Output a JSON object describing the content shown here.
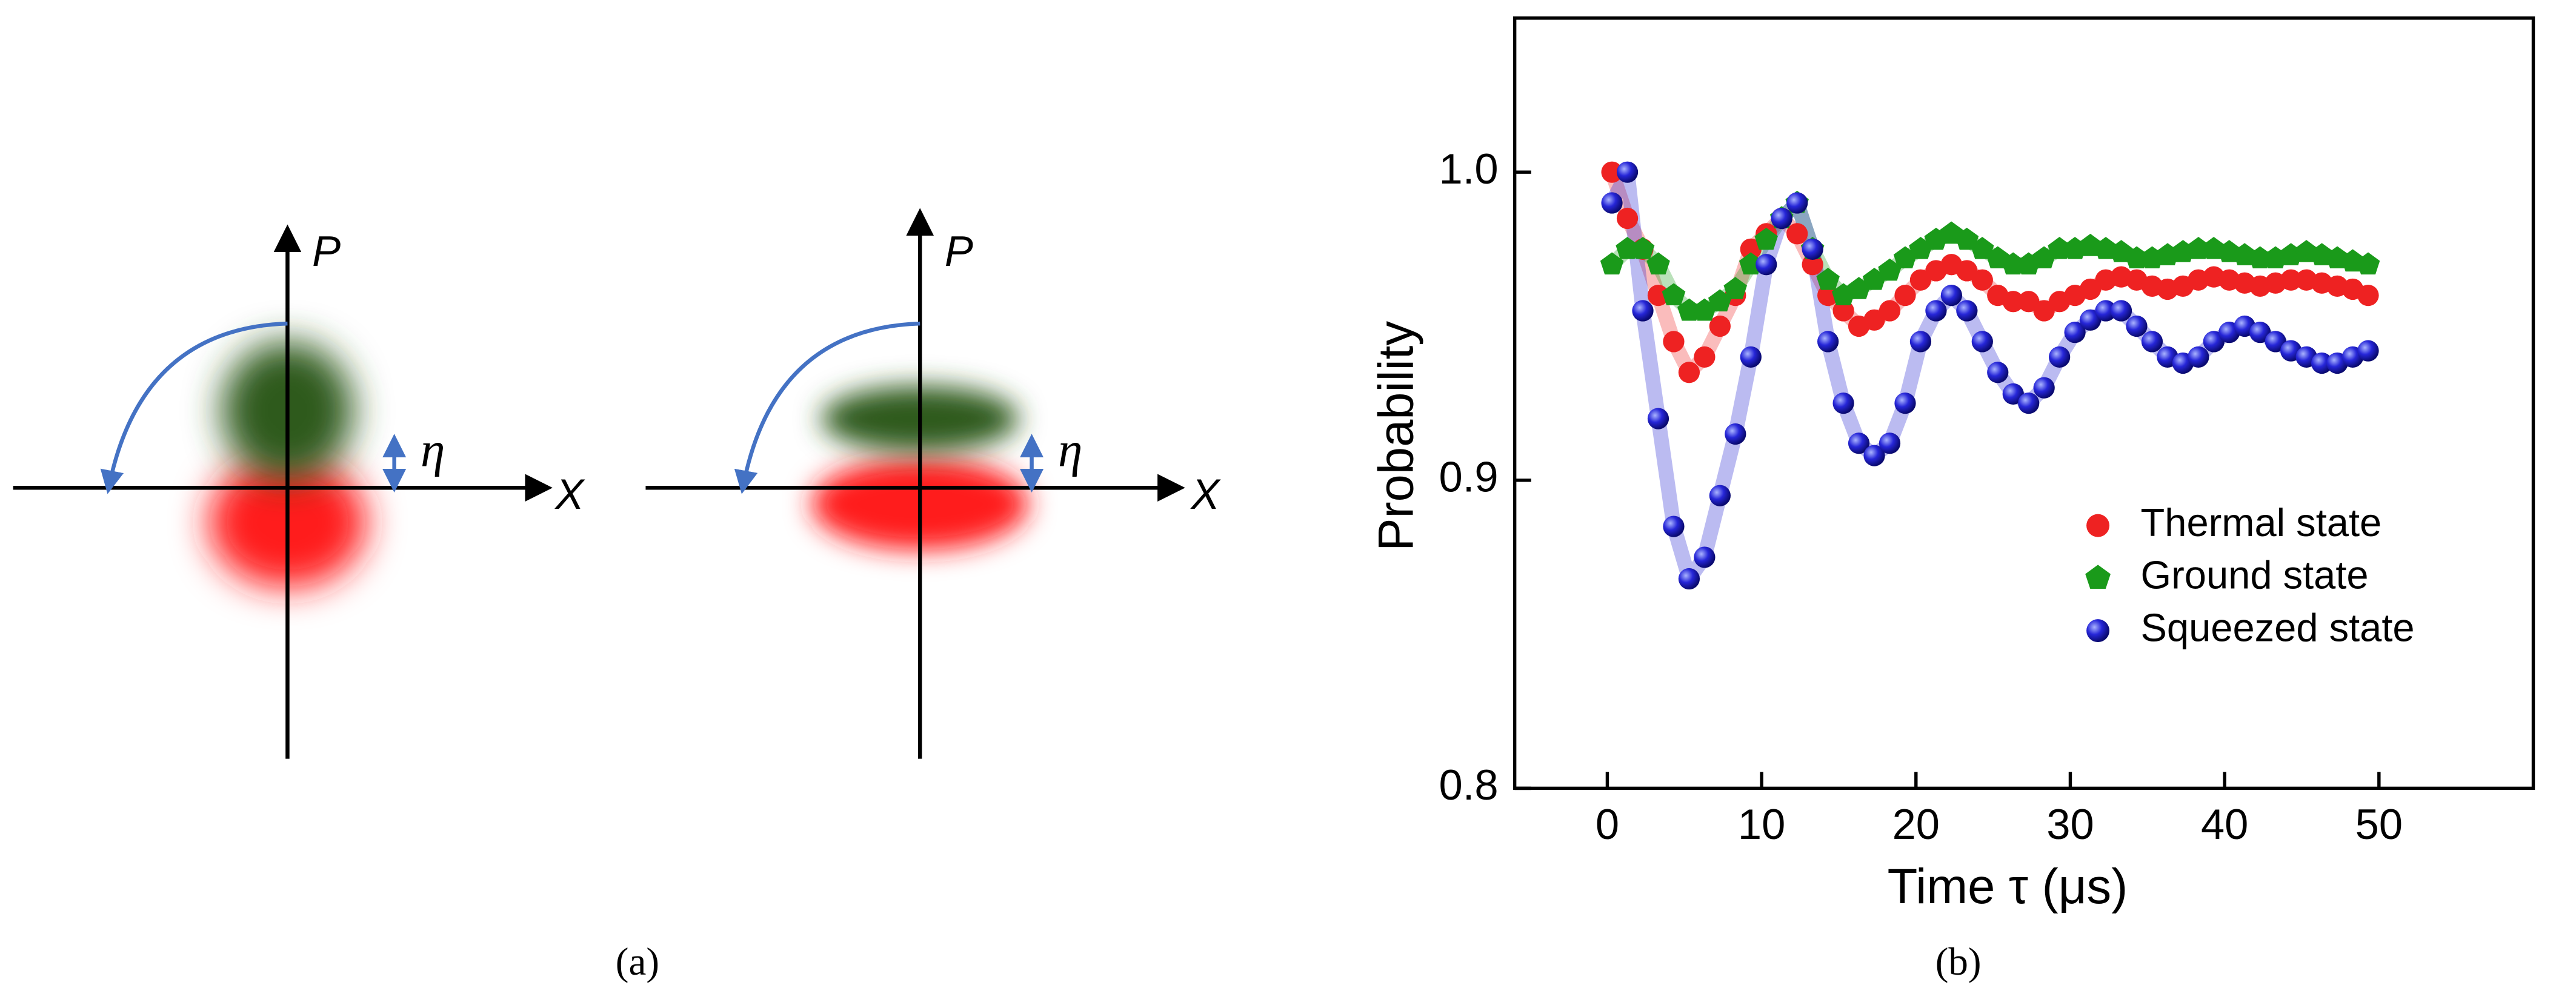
{
  "diagrams": [
    {
      "p_label": "P",
      "x_label": "X",
      "eta_label": "η"
    },
    {
      "p_label": "P",
      "x_label": "X",
      "eta_label": "η"
    }
  ],
  "captions": [
    "(a)",
    "(b)"
  ],
  "chart_data": {
    "type": "scatter",
    "x_label": "Time τ (μs)",
    "y_label": "Probability",
    "x": [
      0.3,
      1.3,
      2.3,
      3.3,
      4.3,
      5.3,
      6.3,
      7.3,
      8.3,
      9.3,
      10.3,
      11.3,
      12.3,
      13.3,
      14.3,
      15.3,
      16.3,
      17.3,
      18.3,
      19.3,
      20.3,
      21.3,
      22.3,
      23.3,
      24.3,
      25.3,
      26.3,
      27.3,
      28.3,
      29.3,
      30.3,
      31.3,
      32.3,
      33.3,
      34.3,
      35.3,
      36.3,
      37.3,
      38.3,
      39.3,
      40.3,
      41.3,
      42.3,
      43.3,
      44.3,
      45.3,
      46.3,
      47.3,
      48.3,
      49.3
    ],
    "series": [
      {
        "name": "Thermal state",
        "color": "#ee2222",
        "marker": "circle",
        "values": [
          1.0,
          0.985,
          0.975,
          0.96,
          0.945,
          0.935,
          0.94,
          0.95,
          0.96,
          0.975,
          0.98,
          0.985,
          0.98,
          0.97,
          0.96,
          0.955,
          0.95,
          0.952,
          0.955,
          0.96,
          0.965,
          0.968,
          0.97,
          0.968,
          0.965,
          0.96,
          0.958,
          0.958,
          0.955,
          0.958,
          0.96,
          0.962,
          0.965,
          0.966,
          0.965,
          0.963,
          0.962,
          0.963,
          0.965,
          0.966,
          0.965,
          0.964,
          0.963,
          0.964,
          0.965,
          0.965,
          0.964,
          0.963,
          0.962,
          0.96
        ]
      },
      {
        "name": "Ground state",
        "color": "#1a9a1a",
        "marker": "pentagon",
        "values": [
          0.97,
          0.975,
          0.975,
          0.97,
          0.96,
          0.955,
          0.955,
          0.958,
          0.962,
          0.97,
          0.978,
          0.985,
          0.99,
          0.975,
          0.965,
          0.96,
          0.962,
          0.965,
          0.968,
          0.972,
          0.975,
          0.978,
          0.98,
          0.978,
          0.975,
          0.972,
          0.97,
          0.97,
          0.972,
          0.975,
          0.975,
          0.976,
          0.975,
          0.974,
          0.972,
          0.972,
          0.973,
          0.974,
          0.975,
          0.975,
          0.974,
          0.973,
          0.972,
          0.972,
          0.973,
          0.974,
          0.973,
          0.972,
          0.971,
          0.97
        ]
      },
      {
        "name": "Squeezed state",
        "color": "#1f1fd0",
        "marker": "sphere",
        "values": [
          0.99,
          1.0,
          0.955,
          0.92,
          0.885,
          0.868,
          0.875,
          0.895,
          0.915,
          0.94,
          0.97,
          0.985,
          0.99,
          0.975,
          0.945,
          0.925,
          0.912,
          0.908,
          0.912,
          0.925,
          0.945,
          0.955,
          0.96,
          0.955,
          0.945,
          0.935,
          0.928,
          0.925,
          0.93,
          0.94,
          0.948,
          0.952,
          0.955,
          0.955,
          0.95,
          0.945,
          0.94,
          0.938,
          0.94,
          0.945,
          0.948,
          0.95,
          0.948,
          0.945,
          0.942,
          0.94,
          0.938,
          0.938,
          0.94,
          0.942
        ]
      }
    ],
    "xlim": [
      -6,
      60
    ],
    "ylim": [
      0.8,
      1.05
    ],
    "xticks": [
      0,
      10,
      20,
      30,
      40,
      50
    ],
    "yticks": [
      0.8,
      0.9,
      {
        "value": 1,
        "label": "1.0"
      }
    ],
    "legend": "lower right"
  }
}
